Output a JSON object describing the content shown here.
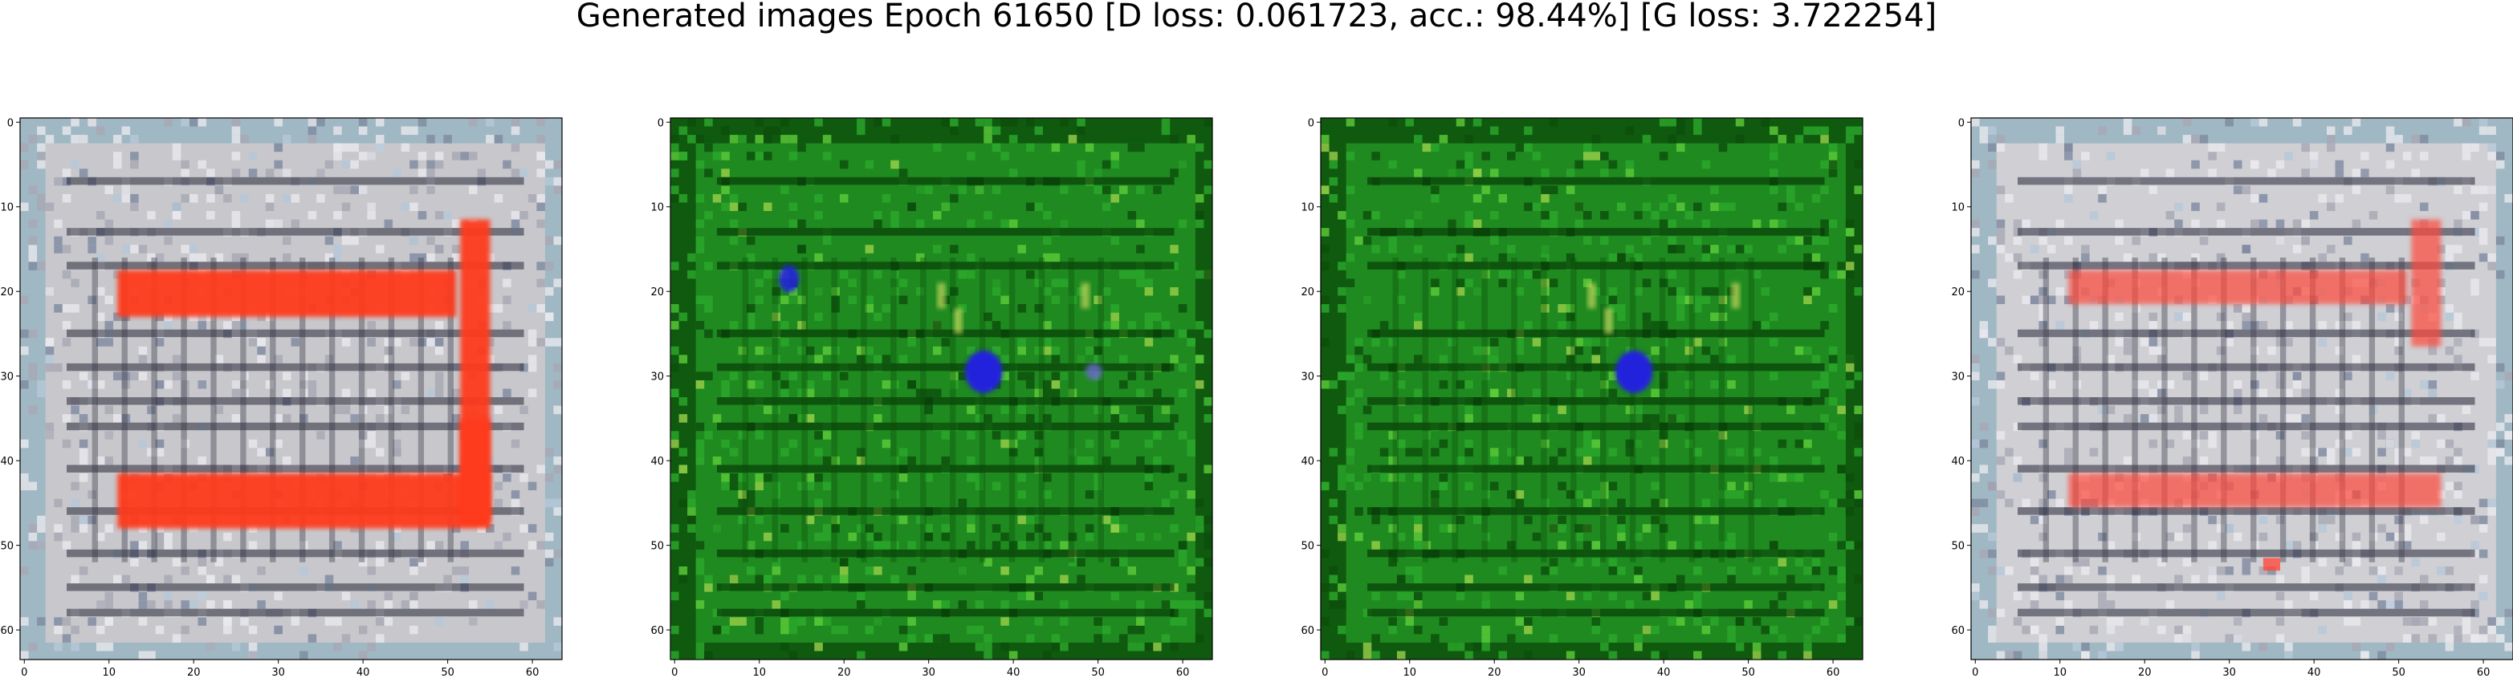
{
  "figure": {
    "title": "Generated images Epoch 61650 [D loss: 0.061723, acc.: 98.44%] [G loss: 3.722254]"
  },
  "axes": {
    "xlim": [
      -0.5,
      63.5
    ],
    "ylim": [
      63.5,
      -0.5
    ],
    "xticks": [
      0,
      10,
      20,
      30,
      40,
      50,
      60
    ],
    "yticks": [
      0,
      10,
      20,
      30,
      40,
      50,
      60
    ],
    "grid": false
  },
  "panels": [
    {
      "theme": "light-gray",
      "base_color": "#c8c8cc",
      "accent_color": "#ff3a1e",
      "frame_color": "#9fb8c4"
    },
    {
      "theme": "green",
      "base_color": "#1f8a1f",
      "accent_color": "#2222dd",
      "frame_color": "#0f5a0f"
    },
    {
      "theme": "green",
      "base_color": "#1f8a1f",
      "accent_color": "#2222dd",
      "frame_color": "#0f5a0f"
    },
    {
      "theme": "light-gray",
      "base_color": "#cfcfd4",
      "accent_color": "#ff4a3a",
      "frame_color": "#9fb8c4"
    }
  ]
}
